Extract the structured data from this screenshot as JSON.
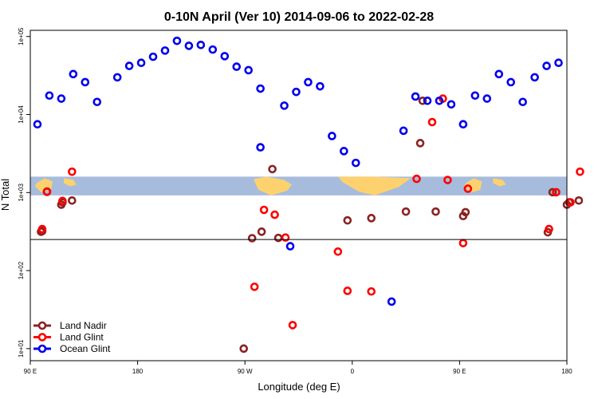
{
  "chart_data": {
    "type": "scatter",
    "title": "0-10N April (Ver 10)   2014-09-06 to 2022-02-28",
    "xlabel": "Longitude (deg E)",
    "ylabel": "N Total",
    "x_scale": "linear",
    "y_scale": "log",
    "xlim": [
      90,
      540
    ],
    "ylim": [
      7,
      120000
    ],
    "x_ticks": [
      {
        "value": 90,
        "label": "90 E"
      },
      {
        "value": 180,
        "label": "180"
      },
      {
        "value": 270,
        "label": "90 W"
      },
      {
        "value": 360,
        "label": "0"
      },
      {
        "value": 450,
        "label": "90 E"
      },
      {
        "value": 540,
        "label": "180"
      }
    ],
    "y_ticks": [
      {
        "value": 10,
        "label": "1e+01"
      },
      {
        "value": 100,
        "label": "1e+02"
      },
      {
        "value": 1000,
        "label": "1e+03"
      },
      {
        "value": 10000,
        "label": "1e+04"
      },
      {
        "value": 100000,
        "label": "1e+05"
      }
    ],
    "reference_line_y": 250,
    "grid": false,
    "legend_position": "bottom-left",
    "land_map_band": {
      "y_min": 920,
      "y_max": 1600,
      "ocean_color": "#a7bcdc",
      "land_color": "#fdd26e"
    },
    "series": [
      {
        "name": "Land Nadir",
        "color": "#8b2323",
        "points": [
          [
            99,
            315
          ],
          [
            100,
            320
          ],
          [
            104,
            1030
          ],
          [
            116,
            700
          ],
          [
            117,
            750
          ],
          [
            125,
            790
          ],
          [
            269,
            10
          ],
          [
            276,
            260
          ],
          [
            284,
            315
          ],
          [
            293,
            2000
          ],
          [
            298,
            262
          ],
          [
            356,
            440
          ],
          [
            376,
            470
          ],
          [
            405,
            570
          ],
          [
            417,
            4300
          ],
          [
            419,
            15000
          ],
          [
            430,
            570
          ],
          [
            453,
            500
          ],
          [
            455,
            560
          ],
          [
            524,
            310
          ],
          [
            528,
            1010
          ],
          [
            540,
            700
          ],
          [
            542,
            750
          ],
          [
            550,
            790
          ]
        ]
      },
      {
        "name": "Land Glint",
        "color": "#ff0000",
        "points": [
          [
            100,
            340
          ],
          [
            104,
            1020
          ],
          [
            117,
            780
          ],
          [
            125,
            1850
          ],
          [
            278,
            62
          ],
          [
            286,
            600
          ],
          [
            295,
            520
          ],
          [
            304,
            265
          ],
          [
            310,
            20
          ],
          [
            348,
            175
          ],
          [
            356,
            55
          ],
          [
            376,
            54
          ],
          [
            414,
            1500
          ],
          [
            427,
            8000
          ],
          [
            436,
            16000
          ],
          [
            440,
            1450
          ],
          [
            453,
            225
          ],
          [
            457,
            1120
          ],
          [
            525,
            340
          ],
          [
            531,
            1010
          ],
          [
            543,
            750
          ],
          [
            551,
            1850
          ]
        ]
      },
      {
        "name": "Ocean Glint",
        "color": "#0000ee",
        "points": [
          [
            96,
            7500
          ],
          [
            106,
            17500
          ],
          [
            116,
            16000
          ],
          [
            126,
            33000
          ],
          [
            136,
            26000
          ],
          [
            146,
            14500
          ],
          [
            163,
            30000
          ],
          [
            173,
            42000
          ],
          [
            183,
            46000
          ],
          [
            193,
            55000
          ],
          [
            203,
            66000
          ],
          [
            213,
            88000
          ],
          [
            223,
            76000
          ],
          [
            233,
            78000
          ],
          [
            243,
            68000
          ],
          [
            253,
            56000
          ],
          [
            263,
            41000
          ],
          [
            273,
            37000
          ],
          [
            283,
            21500
          ],
          [
            283,
            3800
          ],
          [
            303,
            13000
          ],
          [
            308,
            205
          ],
          [
            313,
            19500
          ],
          [
            323,
            26000
          ],
          [
            333,
            23000
          ],
          [
            343,
            5300
          ],
          [
            353,
            3400
          ],
          [
            363,
            2400
          ],
          [
            393,
            40
          ],
          [
            403,
            6200
          ],
          [
            413,
            17000
          ],
          [
            423,
            15000
          ],
          [
            433,
            15000
          ],
          [
            443,
            13500
          ],
          [
            453,
            7500
          ],
          [
            463,
            17500
          ],
          [
            473,
            16000
          ],
          [
            483,
            33000
          ],
          [
            493,
            26000
          ],
          [
            503,
            14500
          ],
          [
            513,
            30000
          ],
          [
            523,
            42000
          ],
          [
            533,
            46000
          ]
        ]
      }
    ]
  }
}
